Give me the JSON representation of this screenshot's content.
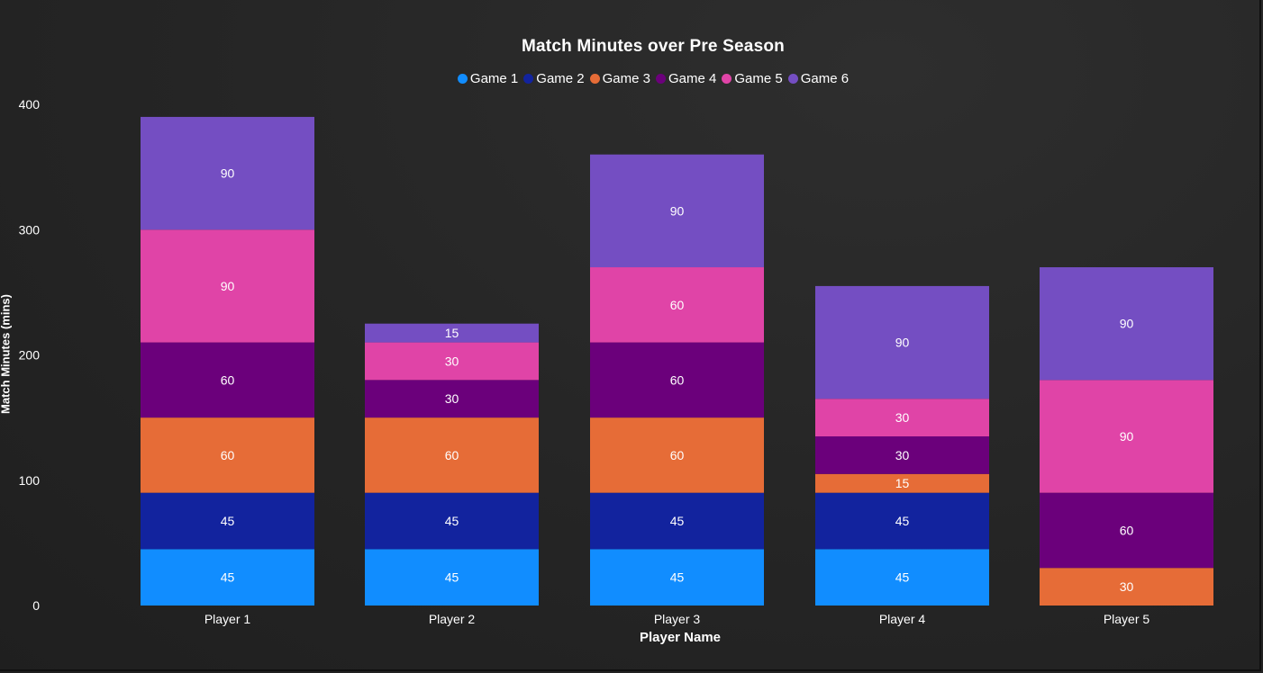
{
  "chart_data": {
    "type": "bar",
    "stacked": true,
    "title": "Match Minutes over Pre Season",
    "xlabel": "Player Name",
    "ylabel": "Match Minutes (mins)",
    "ylim": [
      0,
      400
    ],
    "yticks": [
      0,
      100,
      200,
      300,
      400
    ],
    "legend_position": "top-center",
    "categories": [
      "Player 1",
      "Player 2",
      "Player 3",
      "Player 4",
      "Player 5"
    ],
    "series": [
      {
        "name": "Game 1",
        "color": "#118DFF",
        "values": [
          45,
          45,
          45,
          45,
          0
        ]
      },
      {
        "name": "Game 2",
        "color": "#12239E",
        "values": [
          45,
          45,
          45,
          45,
          0
        ]
      },
      {
        "name": "Game 3",
        "color": "#E66C37",
        "values": [
          60,
          60,
          60,
          15,
          30
        ]
      },
      {
        "name": "Game 4",
        "color": "#6B007B",
        "values": [
          60,
          30,
          60,
          30,
          60
        ]
      },
      {
        "name": "Game 5",
        "color": "#E044A7",
        "values": [
          90,
          30,
          60,
          30,
          90
        ]
      },
      {
        "name": "Game 6",
        "color": "#744EC2",
        "values": [
          90,
          15,
          90,
          90,
          90
        ]
      }
    ]
  }
}
